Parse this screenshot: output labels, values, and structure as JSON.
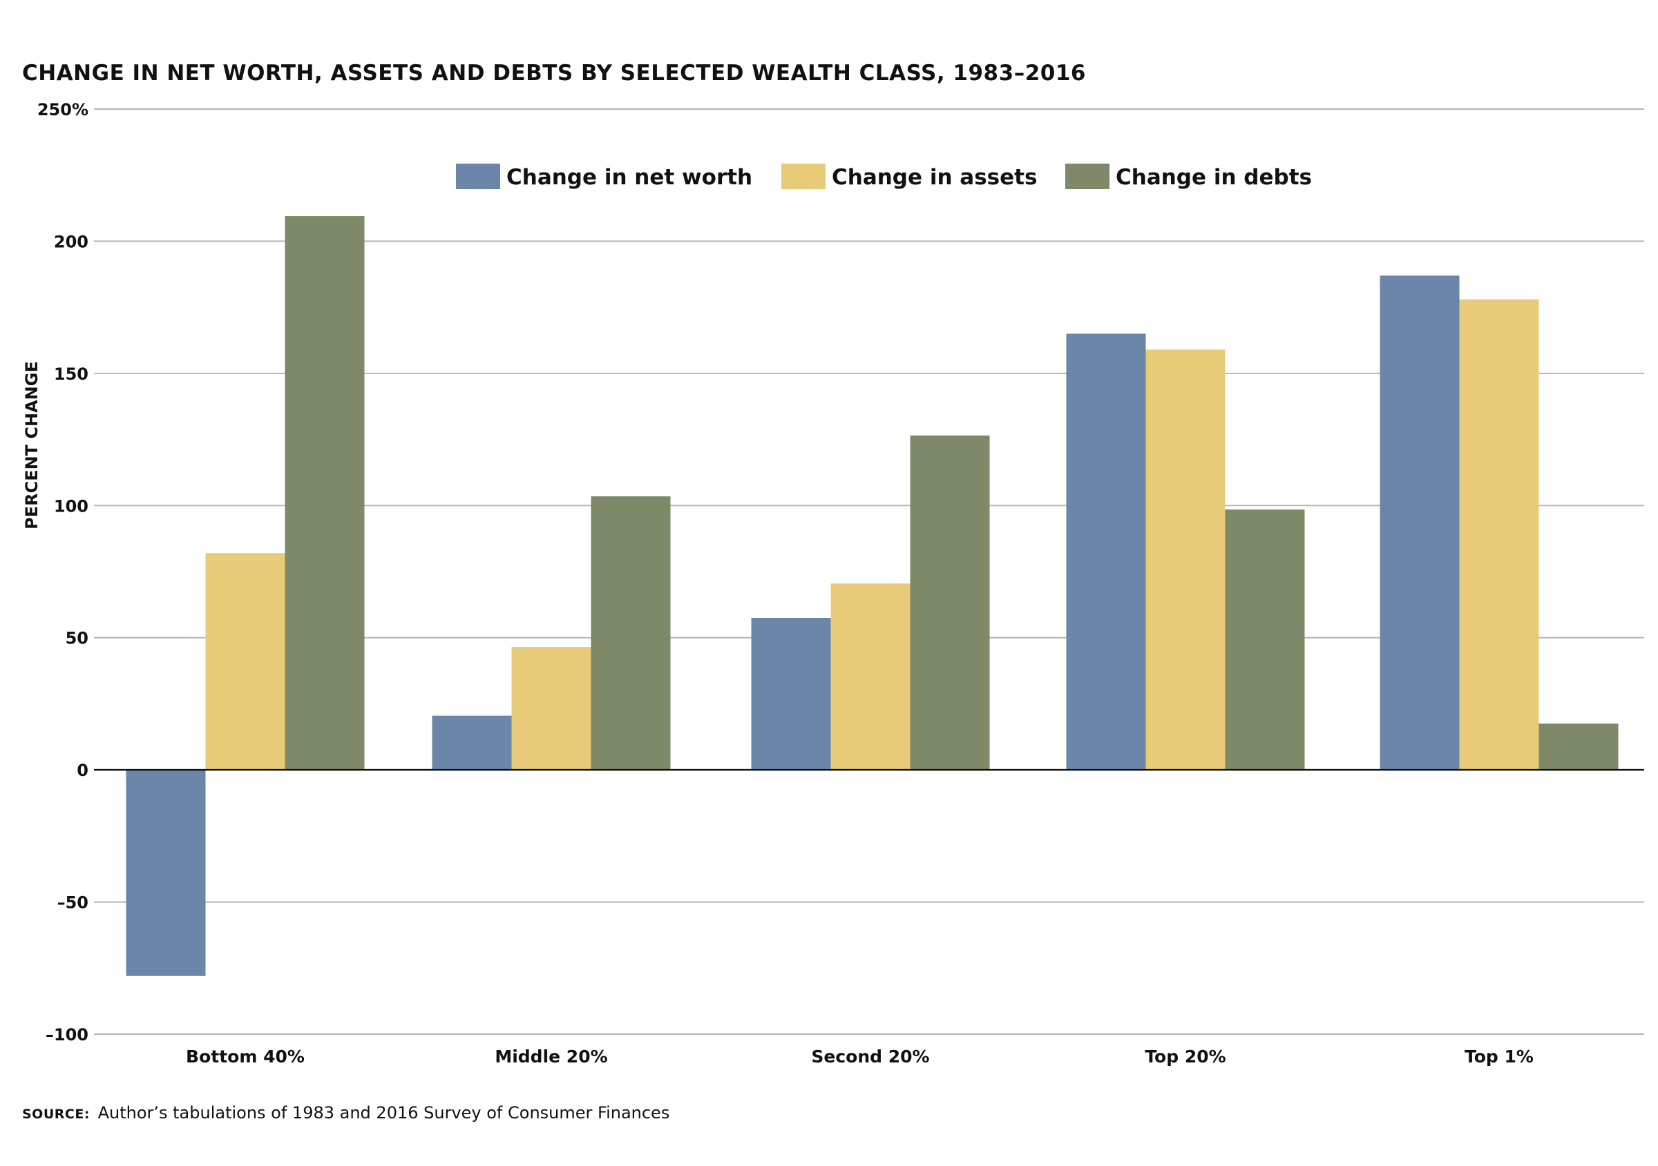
{
  "chart_data": {
    "type": "bar",
    "title": "CHANGE IN NET WORTH, ASSETS AND DEBTS BY SELECTED WEALTH CLASS, 1983–2016",
    "xlabel": "",
    "ylabel": "PERCENT CHANGE",
    "categories": [
      "Bottom 40%",
      "Middle 20%",
      "Second 20%",
      "Top 20%",
      "Top 1%"
    ],
    "series": [
      {
        "name": "Change in net worth",
        "color": "#6a87aa",
        "values": [
          -78,
          20.5,
          57.5,
          165,
          187
        ]
      },
      {
        "name": "Change in assets",
        "color": "#e8cb79",
        "values": [
          82,
          46.5,
          70.5,
          159,
          178
        ]
      },
      {
        "name": "Change in debts",
        "color": "#7d8968",
        "values": [
          209.5,
          103.5,
          126.5,
          98.5,
          17.5
        ]
      }
    ],
    "ylim": [
      -100,
      250
    ],
    "yticks": [
      -100,
      -50,
      0,
      50,
      100,
      150,
      200,
      250
    ],
    "ytick_labels": [
      "–100",
      "–50",
      "0",
      "50",
      "100",
      "150",
      "200",
      "250%"
    ],
    "grid": true,
    "legend_position": "top-center"
  },
  "source": {
    "label": "SOURCE:",
    "text": "Author’s tabulations of 1983 and 2016 Survey of Consumer Finances"
  }
}
